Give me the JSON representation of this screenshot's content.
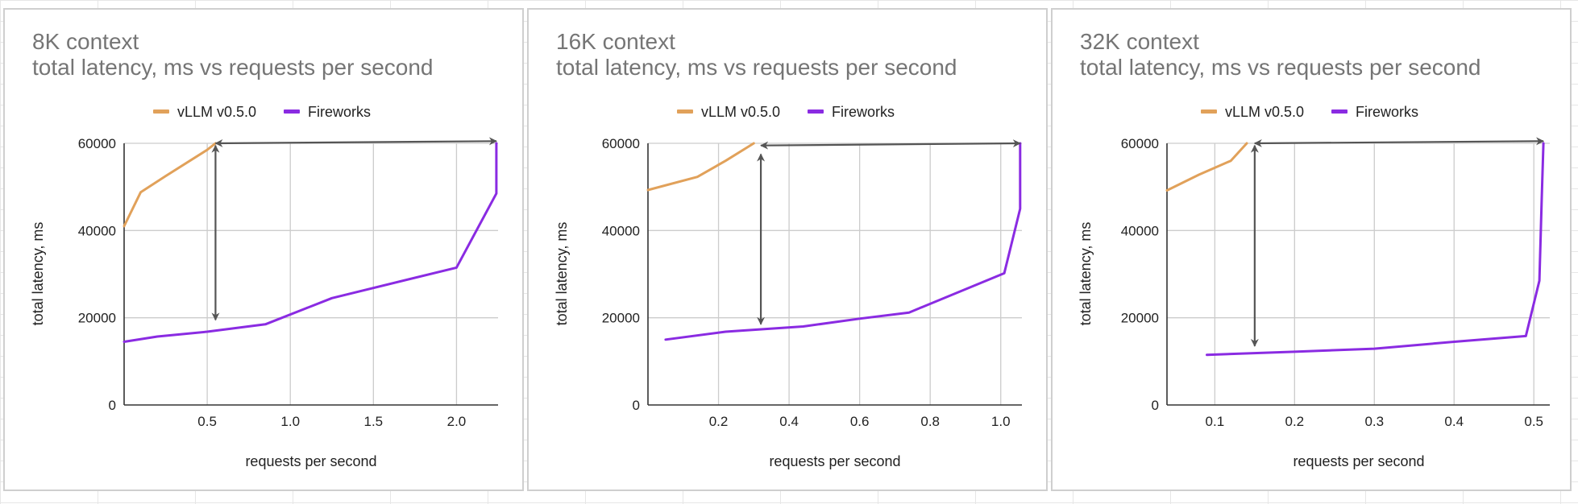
{
  "colors": {
    "vllm": "#E1A15A",
    "fireworks": "#8A2BE2",
    "arrow": "#555555"
  },
  "chart_data": [
    {
      "type": "line",
      "title": "8K context",
      "subtitle": "total latency, ms vs requests per second",
      "xlabel": "requests per second",
      "ylabel": "total latency, ms",
      "xlim": [
        0.0,
        2.25
      ],
      "ylim": [
        0,
        60000
      ],
      "x_ticks": [
        0.5,
        1.0,
        1.5,
        2.0
      ],
      "x_tick_labels": [
        "0.5",
        "1.0",
        "1.5",
        "2.0"
      ],
      "y_ticks": [
        0,
        20000,
        40000,
        60000
      ],
      "y_tick_labels": [
        "0",
        "20000",
        "40000",
        "60000"
      ],
      "grid": true,
      "legend_position": "top",
      "series": [
        {
          "name": "vLLM v0.5.0",
          "color_key": "vllm",
          "x": [
            0.0,
            0.1,
            0.25,
            0.5,
            0.55
          ],
          "y": [
            41000,
            48800,
            52500,
            58500,
            60000
          ]
        },
        {
          "name": "Fireworks",
          "color_key": "fireworks",
          "x": [
            0.0,
            0.2,
            0.5,
            0.85,
            1.25,
            2.0,
            2.24,
            2.24
          ],
          "y": [
            14500,
            15700,
            16800,
            18500,
            24500,
            31500,
            48500,
            60000
          ]
        }
      ],
      "annotations": [
        {
          "type": "double-arrow",
          "from": [
            0.55,
            60000
          ],
          "to": [
            2.24,
            60500
          ]
        },
        {
          "type": "double-arrow",
          "from": [
            0.55,
            59500
          ],
          "to": [
            0.55,
            19500
          ]
        }
      ]
    },
    {
      "type": "line",
      "title": "16K context",
      "subtitle": "total latency, ms vs requests per second",
      "xlabel": "requests per second",
      "ylabel": "total latency, ms",
      "xlim": [
        0.0,
        1.06
      ],
      "ylim": [
        0,
        60000
      ],
      "x_ticks": [
        0.2,
        0.4,
        0.6,
        0.8,
        1.0
      ],
      "x_tick_labels": [
        "0.2",
        "0.4",
        "0.6",
        "0.8",
        "1.0"
      ],
      "y_ticks": [
        0,
        20000,
        40000,
        60000
      ],
      "y_tick_labels": [
        "0",
        "20000",
        "40000",
        "60000"
      ],
      "grid": true,
      "legend_position": "top",
      "series": [
        {
          "name": "vLLM v0.5.0",
          "color_key": "vllm",
          "x": [
            0.0,
            0.14,
            0.22,
            0.3
          ],
          "y": [
            49300,
            52300,
            56000,
            60000
          ]
        },
        {
          "name": "Fireworks",
          "color_key": "fireworks",
          "x": [
            0.05,
            0.22,
            0.44,
            0.6,
            0.74,
            1.01,
            1.055,
            1.055
          ],
          "y": [
            15000,
            16800,
            18000,
            19800,
            21200,
            30200,
            45000,
            60000
          ]
        }
      ],
      "annotations": [
        {
          "type": "double-arrow",
          "from": [
            0.32,
            59500
          ],
          "to": [
            1.055,
            60000
          ]
        },
        {
          "type": "double-arrow",
          "from": [
            0.32,
            57500
          ],
          "to": [
            0.32,
            18500
          ]
        }
      ]
    },
    {
      "type": "line",
      "title": "32K context",
      "subtitle": "total latency, ms vs requests per second",
      "xlabel": "requests per second",
      "ylabel": "total latency, ms",
      "xlim": [
        0.04,
        0.52
      ],
      "ylim": [
        0,
        60000
      ],
      "x_ticks": [
        0.1,
        0.2,
        0.3,
        0.4,
        0.5
      ],
      "x_tick_labels": [
        "0.1",
        "0.2",
        "0.3",
        "0.4",
        "0.5"
      ],
      "y_ticks": [
        0,
        20000,
        40000,
        60000
      ],
      "y_tick_labels": [
        "0",
        "20000",
        "40000",
        "60000"
      ],
      "grid": true,
      "legend_position": "top",
      "series": [
        {
          "name": "vLLM v0.5.0",
          "color_key": "vllm",
          "x": [
            0.04,
            0.08,
            0.12,
            0.14
          ],
          "y": [
            49200,
            52800,
            56000,
            60000
          ]
        },
        {
          "name": "Fireworks",
          "color_key": "fireworks",
          "x": [
            0.09,
            0.2,
            0.3,
            0.4,
            0.49,
            0.507,
            0.51,
            0.512
          ],
          "y": [
            11500,
            12200,
            12900,
            14500,
            15800,
            28500,
            48000,
            60000
          ]
        }
      ],
      "annotations": [
        {
          "type": "double-arrow",
          "from": [
            0.15,
            60000
          ],
          "to": [
            0.512,
            60500
          ]
        },
        {
          "type": "double-arrow",
          "from": [
            0.15,
            59500
          ],
          "to": [
            0.15,
            13500
          ]
        }
      ]
    }
  ]
}
